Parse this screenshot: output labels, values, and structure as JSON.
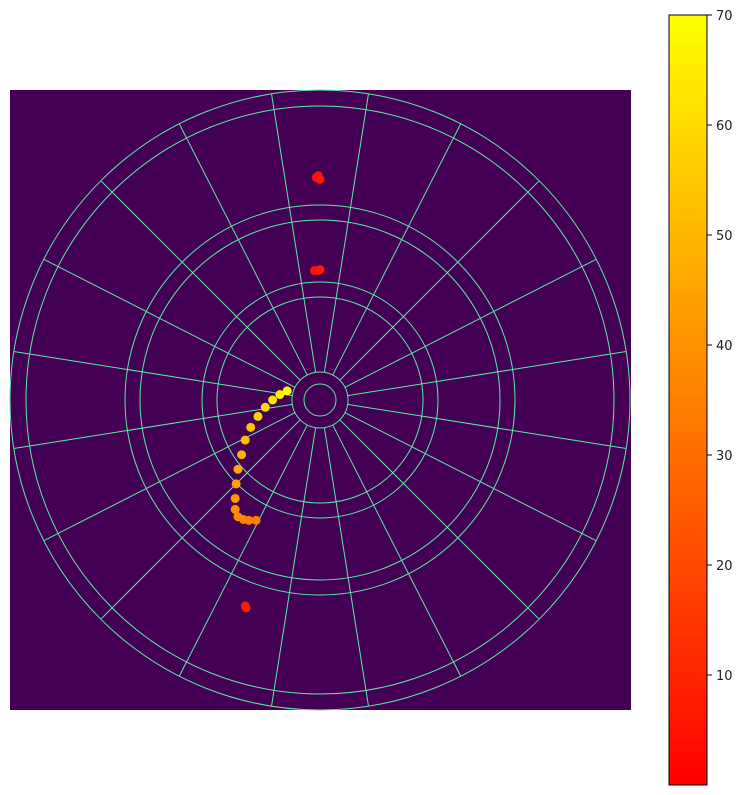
{
  "chart_data": {
    "type": "scatter",
    "title": "",
    "xlabel": "",
    "ylabel": "",
    "background_color": "#440154",
    "board": {
      "line_color": "#5ee6a8",
      "sectors": 20,
      "rings": [
        "inner bull",
        "outer bull",
        "triple inner",
        "triple outer",
        "double inner",
        "double outer",
        "board edge"
      ],
      "grid": true
    },
    "colorbar": {
      "colormap": "autumn",
      "min_color": "#ff0000",
      "max_color": "#ffff00",
      "range": [
        0,
        70
      ],
      "ticks": [
        {
          "value": 10,
          "label": "10"
        },
        {
          "value": 20,
          "label": "20"
        },
        {
          "value": 30,
          "label": "30"
        },
        {
          "value": 40,
          "label": "40"
        },
        {
          "value": 50,
          "label": "50"
        },
        {
          "value": 60,
          "label": "60"
        },
        {
          "value": 70,
          "label": "70"
        }
      ]
    },
    "series": [
      {
        "points": [
          {
            "x": -0.02,
            "y": 1.22,
            "value": 4
          },
          {
            "x": -0.01,
            "y": 1.23,
            "value": 5
          },
          {
            "x": 0.0,
            "y": 1.21,
            "value": 6
          },
          {
            "x": -0.03,
            "y": 0.71,
            "value": 5
          },
          {
            "x": -0.01,
            "y": 0.71,
            "value": 6
          },
          {
            "x": 0.0,
            "y": 0.715,
            "value": 7
          },
          {
            "x": -0.41,
            "y": -1.13,
            "value": 6
          },
          {
            "x": -0.405,
            "y": -1.14,
            "value": 7
          },
          {
            "x": -0.18,
            "y": 0.05,
            "value": 70
          },
          {
            "x": -0.22,
            "y": 0.03,
            "value": 66
          },
          {
            "x": -0.26,
            "y": 0.0,
            "value": 63
          },
          {
            "x": -0.3,
            "y": -0.04,
            "value": 60
          },
          {
            "x": -0.34,
            "y": -0.09,
            "value": 57
          },
          {
            "x": -0.38,
            "y": -0.15,
            "value": 54
          },
          {
            "x": -0.41,
            "y": -0.22,
            "value": 51
          },
          {
            "x": -0.43,
            "y": -0.3,
            "value": 48
          },
          {
            "x": -0.45,
            "y": -0.38,
            "value": 46
          },
          {
            "x": -0.46,
            "y": -0.46,
            "value": 44
          },
          {
            "x": -0.465,
            "y": -0.54,
            "value": 42
          },
          {
            "x": -0.465,
            "y": -0.6,
            "value": 40
          },
          {
            "x": -0.45,
            "y": -0.64,
            "value": 38
          },
          {
            "x": -0.42,
            "y": -0.655,
            "value": 36
          },
          {
            "x": -0.39,
            "y": -0.66,
            "value": 35
          },
          {
            "x": -0.35,
            "y": -0.66,
            "value": 34
          }
        ]
      }
    ]
  }
}
